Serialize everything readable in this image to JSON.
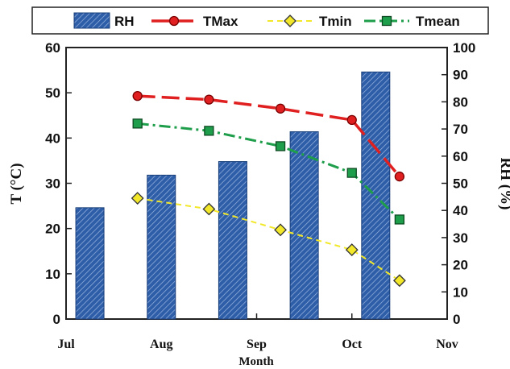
{
  "chart_data": {
    "type": "bar+line",
    "xlabel": "Month",
    "ylabel_left": "T (°C)",
    "ylabel_right": "RH (%)",
    "x_ticks": [
      "Jul",
      "Aug",
      "Sep",
      "Oct",
      "Nov"
    ],
    "ylim_left": [
      0,
      60
    ],
    "yticks_left": [
      0,
      10,
      20,
      30,
      40,
      50,
      60
    ],
    "ylim_right": [
      0,
      100
    ],
    "yticks_right": [
      0,
      10,
      20,
      30,
      40,
      50,
      60,
      70,
      80,
      90,
      100
    ],
    "legend_position": "top",
    "grid": false,
    "rh_bar": {
      "name": "RH",
      "color": "#2e5ea8",
      "x": [
        0.25,
        1.0,
        1.75,
        2.5,
        3.25
      ],
      "values": [
        41,
        53,
        58,
        69,
        91
      ]
    },
    "series": [
      {
        "name": "TMax",
        "color": "#e02020",
        "marker": "circle",
        "x": [
          0.75,
          1.5,
          2.25,
          3.0,
          3.5
        ],
        "values": [
          49.3,
          48.5,
          46.5,
          44.0,
          31.5
        ]
      },
      {
        "name": "Tmin",
        "color": "#f2e829",
        "marker": "diamond",
        "x": [
          0.75,
          1.5,
          2.25,
          3.0,
          3.5
        ],
        "values": [
          26.7,
          24.3,
          19.7,
          15.3,
          8.5
        ]
      },
      {
        "name": "Tmean",
        "color": "#1e9e4a",
        "marker": "square",
        "x": [
          0.75,
          1.5,
          2.25,
          3.0,
          3.5
        ],
        "values": [
          43.2,
          41.6,
          38.2,
          32.3,
          22.0
        ]
      }
    ]
  }
}
